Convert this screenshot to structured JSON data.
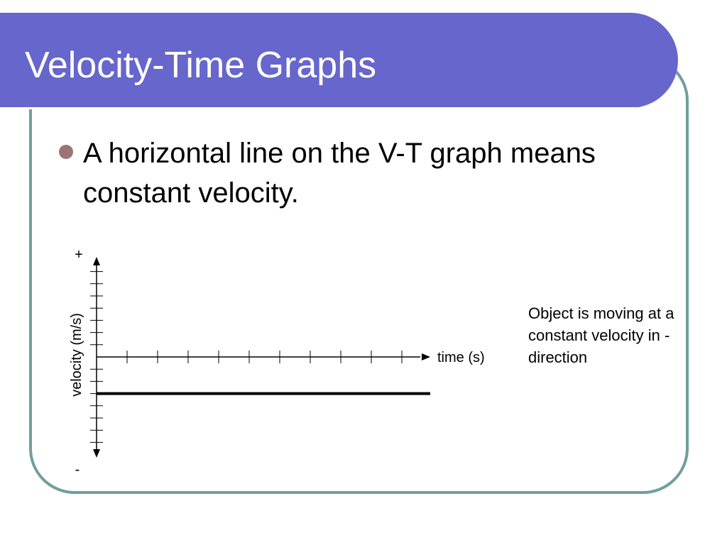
{
  "slide": {
    "title": "Velocity-Time Graphs",
    "bullet": "A horizontal line on the V-T graph means constant velocity.",
    "annotation": "Object is moving at a constant velocity in - direction"
  },
  "colors": {
    "title_bar": "#6666cc",
    "frame_border": "#6f9f9c",
    "bullet_dot": "#9c7474",
    "line": "#000000"
  },
  "chart_data": {
    "type": "line",
    "xlabel": "time (s)",
    "ylabel": "velocity (m/s)",
    "y_positive_label": "+",
    "y_negative_label": "-",
    "x_ticks": 10,
    "y_ticks_above": 7,
    "y_ticks_below": 7,
    "xlim": [
      0,
      11
    ],
    "ylim": [
      -8,
      8
    ],
    "series": [
      {
        "values": [
          {
            "x": 0,
            "y": -3
          },
          {
            "x": 11,
            "y": -3
          }
        ]
      }
    ]
  }
}
